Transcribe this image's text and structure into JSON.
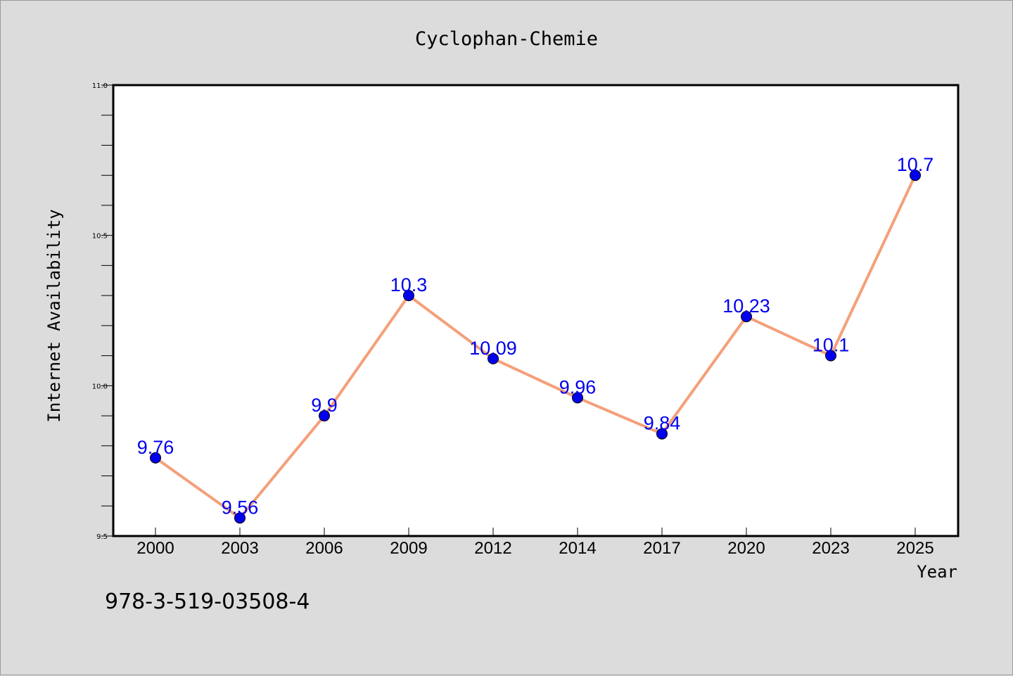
{
  "chart_data": {
    "type": "line",
    "title": "Cyclophan-Chemie",
    "xlabel": "Year",
    "ylabel": "Internet Availability",
    "categories": [
      "2000",
      "2003",
      "2006",
      "2009",
      "2012",
      "2014",
      "2017",
      "2020",
      "2023",
      "2025"
    ],
    "series": [
      {
        "values": [
          9.76,
          9.56,
          9.9,
          10.3,
          10.09,
          9.96,
          9.84,
          10.23,
          10.1,
          10.7
        ],
        "labels": [
          "9.76",
          "9.56",
          "9.9",
          "10.3",
          "10.09",
          "9.96",
          "9.84",
          "10.23",
          "10.1",
          "10.7"
        ]
      }
    ],
    "ylim": [
      9.5,
      11.0
    ],
    "yticks": [
      "9.5",
      "10.0",
      "10.5",
      "11.0"
    ],
    "grid": false,
    "line_color": "#f4a07a",
    "marker_color": "#0000ee",
    "label_color": "#0000ee"
  },
  "footer_text": "978-3-519-03508-4"
}
